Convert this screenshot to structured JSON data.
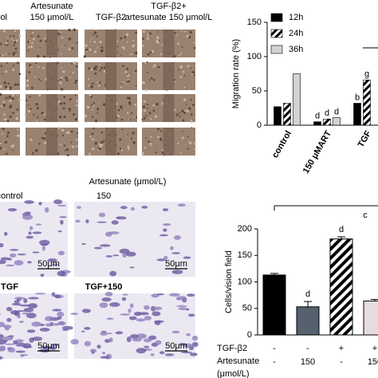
{
  "images": {
    "top_headers": [
      [
        "control"
      ],
      [
        "Artesunate",
        "150 μmol/L"
      ],
      [
        "TGF-β2"
      ],
      [
        "TGF-β2+",
        "artesunate 150 μmol/L"
      ]
    ],
    "bottom_header": "Artesunate (μmol/L)",
    "bottom_labels": [
      "control",
      "150",
      "TGF",
      "TGF+150"
    ],
    "scale_bar": "50μm"
  },
  "chart_data": [
    {
      "type": "bar",
      "ylabel": "Migration rate (%)",
      "categories": [
        "control",
        "150 μMART",
        "TGF"
      ],
      "series": [
        {
          "name": "12h",
          "color": "#000000",
          "values": [
            27,
            5,
            32
          ],
          "sig": [
            null,
            "d",
            "b"
          ]
        },
        {
          "name": "24h",
          "color": "#5a6478",
          "hatch": true,
          "values": [
            32,
            9,
            66
          ],
          "sig": [
            null,
            "d",
            "g"
          ]
        },
        {
          "name": "36h",
          "color": "#d2d2d2",
          "values": [
            75,
            11,
            null
          ],
          "sig": [
            null,
            "d",
            null
          ]
        }
      ],
      "ylim": [
        0,
        150
      ],
      "yticks": [
        0,
        50,
        100,
        150
      ],
      "legend": "top-left"
    },
    {
      "type": "bar",
      "ylabel": "Cells/vision field",
      "values": [
        113,
        53,
        181,
        64
      ],
      "errors": [
        3,
        10,
        4,
        3
      ],
      "colors": [
        "#000000",
        "#56616e",
        "#000000",
        "#e6dcdc"
      ],
      "hatch": [
        false,
        false,
        true,
        false
      ],
      "sig": [
        null,
        "d",
        "d",
        null
      ],
      "bracket": "c",
      "ylim": [
        0,
        200
      ],
      "yticks": [
        0,
        50,
        100,
        150,
        200
      ],
      "table": {
        "row_labels": [
          "TGF-β2",
          "Artesunate",
          "(μmol/L)"
        ],
        "rows": [
          [
            "-",
            "-",
            "+",
            "+"
          ],
          [
            "-",
            "150",
            "-",
            "150"
          ]
        ]
      }
    }
  ]
}
